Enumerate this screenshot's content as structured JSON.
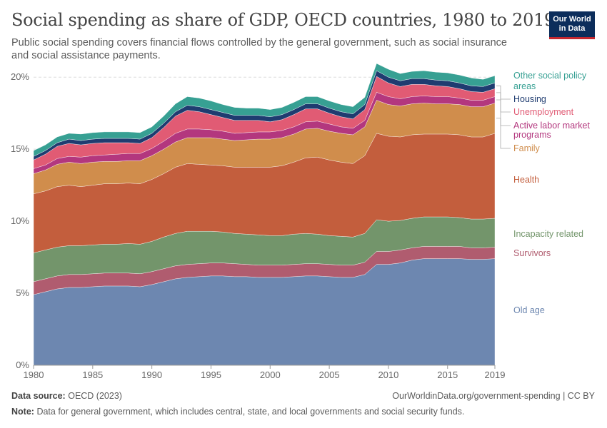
{
  "title": "Social spending as share of GDP, OECD countries, 1980 to 2019",
  "subtitle": "Public social spending covers financial flows controlled by the general government, such as social insurance and social assistance payments.",
  "logo": {
    "line1": "Our World",
    "line2": "in Data"
  },
  "footer": {
    "source_label": "Data source:",
    "source": "OECD (2023)",
    "url": "OurWorldinData.org/government-spending | CC BY",
    "note_label": "Note:",
    "note": "Data for general government, which includes central, state, and local governments and social security funds."
  },
  "chart_data": {
    "type": "area",
    "stacked": true,
    "x": [
      1980,
      1981,
      1982,
      1983,
      1984,
      1985,
      1986,
      1987,
      1988,
      1989,
      1990,
      1991,
      1992,
      1993,
      1994,
      1995,
      1996,
      1997,
      1998,
      1999,
      2000,
      2001,
      2002,
      2003,
      2004,
      2005,
      2006,
      2007,
      2008,
      2009,
      2010,
      2011,
      2012,
      2013,
      2014,
      2015,
      2016,
      2017,
      2018,
      2019
    ],
    "x_ticks": [
      1980,
      1985,
      1990,
      1995,
      2000,
      2005,
      2010,
      2015,
      2019
    ],
    "x_tick_labels": [
      "1980",
      "1985",
      "1990",
      "1995",
      "2000",
      "2005",
      "2010",
      "2015",
      "2019"
    ],
    "y_ticks": [
      0,
      5,
      10,
      15,
      20
    ],
    "y_tick_labels": [
      "0%",
      "5%",
      "10%",
      "15%",
      "20%"
    ],
    "ylim": [
      0,
      21
    ],
    "xlim": [
      1980,
      2019
    ],
    "grid": "horizontal-dashed",
    "legend_placement": "right, inline labels",
    "series": [
      {
        "name": "Old age",
        "color": "#6d87b0",
        "values": [
          4.9,
          5.1,
          5.3,
          5.4,
          5.4,
          5.45,
          5.5,
          5.5,
          5.5,
          5.45,
          5.6,
          5.8,
          6.0,
          6.1,
          6.15,
          6.2,
          6.2,
          6.15,
          6.15,
          6.1,
          6.1,
          6.1,
          6.15,
          6.2,
          6.2,
          6.15,
          6.1,
          6.1,
          6.3,
          7.0,
          7.0,
          7.1,
          7.3,
          7.4,
          7.4,
          7.4,
          7.4,
          7.35,
          7.35,
          7.4
        ]
      },
      {
        "name": "Survivors",
        "color": "#b05c6f",
        "values": [
          0.9,
          0.9,
          0.9,
          0.9,
          0.9,
          0.9,
          0.9,
          0.9,
          0.9,
          0.9,
          0.9,
          0.9,
          0.9,
          0.9,
          0.9,
          0.9,
          0.9,
          0.9,
          0.85,
          0.85,
          0.85,
          0.85,
          0.85,
          0.85,
          0.85,
          0.85,
          0.85,
          0.85,
          0.85,
          0.9,
          0.9,
          0.9,
          0.85,
          0.85,
          0.85,
          0.85,
          0.85,
          0.8,
          0.8,
          0.8
        ]
      },
      {
        "name": "Incapacity related",
        "color": "#73956b",
        "values": [
          2.0,
          2.0,
          2.0,
          2.0,
          2.0,
          2.0,
          2.0,
          2.0,
          2.05,
          2.05,
          2.1,
          2.2,
          2.25,
          2.3,
          2.25,
          2.2,
          2.15,
          2.1,
          2.1,
          2.1,
          2.05,
          2.05,
          2.1,
          2.1,
          2.05,
          2.0,
          2.0,
          1.95,
          2.0,
          2.2,
          2.1,
          2.05,
          2.05,
          2.05,
          2.05,
          2.05,
          2.0,
          2.0,
          2.0,
          2.0
        ]
      },
      {
        "name": "Health",
        "color": "#c35e3d",
        "values": [
          4.1,
          4.1,
          4.2,
          4.2,
          4.1,
          4.15,
          4.2,
          4.2,
          4.2,
          4.2,
          4.3,
          4.4,
          4.6,
          4.7,
          4.65,
          4.6,
          4.6,
          4.6,
          4.65,
          4.7,
          4.75,
          4.85,
          5.0,
          5.25,
          5.35,
          5.25,
          5.15,
          5.1,
          5.4,
          6.0,
          5.9,
          5.8,
          5.8,
          5.75,
          5.75,
          5.75,
          5.75,
          5.7,
          5.7,
          5.9
        ]
      },
      {
        "name": "Family",
        "color": "#d08d4c",
        "values": [
          1.4,
          1.45,
          1.55,
          1.6,
          1.6,
          1.6,
          1.55,
          1.55,
          1.55,
          1.6,
          1.65,
          1.7,
          1.75,
          1.8,
          1.85,
          1.9,
          1.85,
          1.85,
          1.9,
          1.95,
          1.95,
          1.95,
          1.95,
          2.0,
          2.0,
          2.0,
          2.0,
          2.0,
          2.0,
          2.3,
          2.2,
          2.15,
          2.15,
          2.15,
          2.1,
          2.1,
          2.1,
          2.1,
          2.1,
          2.1
        ]
      },
      {
        "name": "Active labor market programs",
        "color": "#b3377e",
        "values": [
          0.35,
          0.35,
          0.4,
          0.4,
          0.45,
          0.45,
          0.45,
          0.5,
          0.5,
          0.5,
          0.5,
          0.55,
          0.6,
          0.6,
          0.6,
          0.55,
          0.55,
          0.5,
          0.5,
          0.5,
          0.5,
          0.5,
          0.5,
          0.5,
          0.5,
          0.5,
          0.45,
          0.45,
          0.45,
          0.55,
          0.55,
          0.5,
          0.5,
          0.5,
          0.5,
          0.5,
          0.45,
          0.45,
          0.45,
          0.45
        ]
      },
      {
        "name": "Unemployment",
        "color": "#e15b74",
        "values": [
          0.6,
          0.75,
          0.85,
          0.9,
          0.85,
          0.85,
          0.85,
          0.8,
          0.75,
          0.7,
          0.75,
          0.95,
          1.2,
          1.3,
          1.2,
          1.05,
          0.95,
          0.9,
          0.85,
          0.8,
          0.7,
          0.75,
          0.85,
          0.9,
          0.85,
          0.75,
          0.7,
          0.65,
          0.75,
          1.1,
          0.95,
          0.85,
          0.85,
          0.8,
          0.75,
          0.7,
          0.65,
          0.6,
          0.55,
          0.55
        ]
      },
      {
        "name": "Housing",
        "color": "#1f3c70",
        "values": [
          0.25,
          0.25,
          0.25,
          0.3,
          0.3,
          0.3,
          0.3,
          0.3,
          0.3,
          0.3,
          0.3,
          0.3,
          0.3,
          0.35,
          0.35,
          0.35,
          0.35,
          0.35,
          0.35,
          0.35,
          0.35,
          0.35,
          0.35,
          0.35,
          0.35,
          0.35,
          0.35,
          0.35,
          0.35,
          0.4,
          0.4,
          0.4,
          0.4,
          0.4,
          0.4,
          0.4,
          0.4,
          0.4,
          0.4,
          0.4
        ]
      },
      {
        "name": "Other social policy areas",
        "color": "#37a093",
        "values": [
          0.4,
          0.4,
          0.4,
          0.4,
          0.45,
          0.45,
          0.45,
          0.45,
          0.45,
          0.45,
          0.45,
          0.5,
          0.55,
          0.6,
          0.6,
          0.6,
          0.55,
          0.55,
          0.5,
          0.5,
          0.5,
          0.5,
          0.5,
          0.5,
          0.5,
          0.5,
          0.5,
          0.5,
          0.5,
          0.5,
          0.55,
          0.5,
          0.5,
          0.55,
          0.55,
          0.55,
          0.55,
          0.55,
          0.5,
          0.5
        ]
      }
    ]
  }
}
